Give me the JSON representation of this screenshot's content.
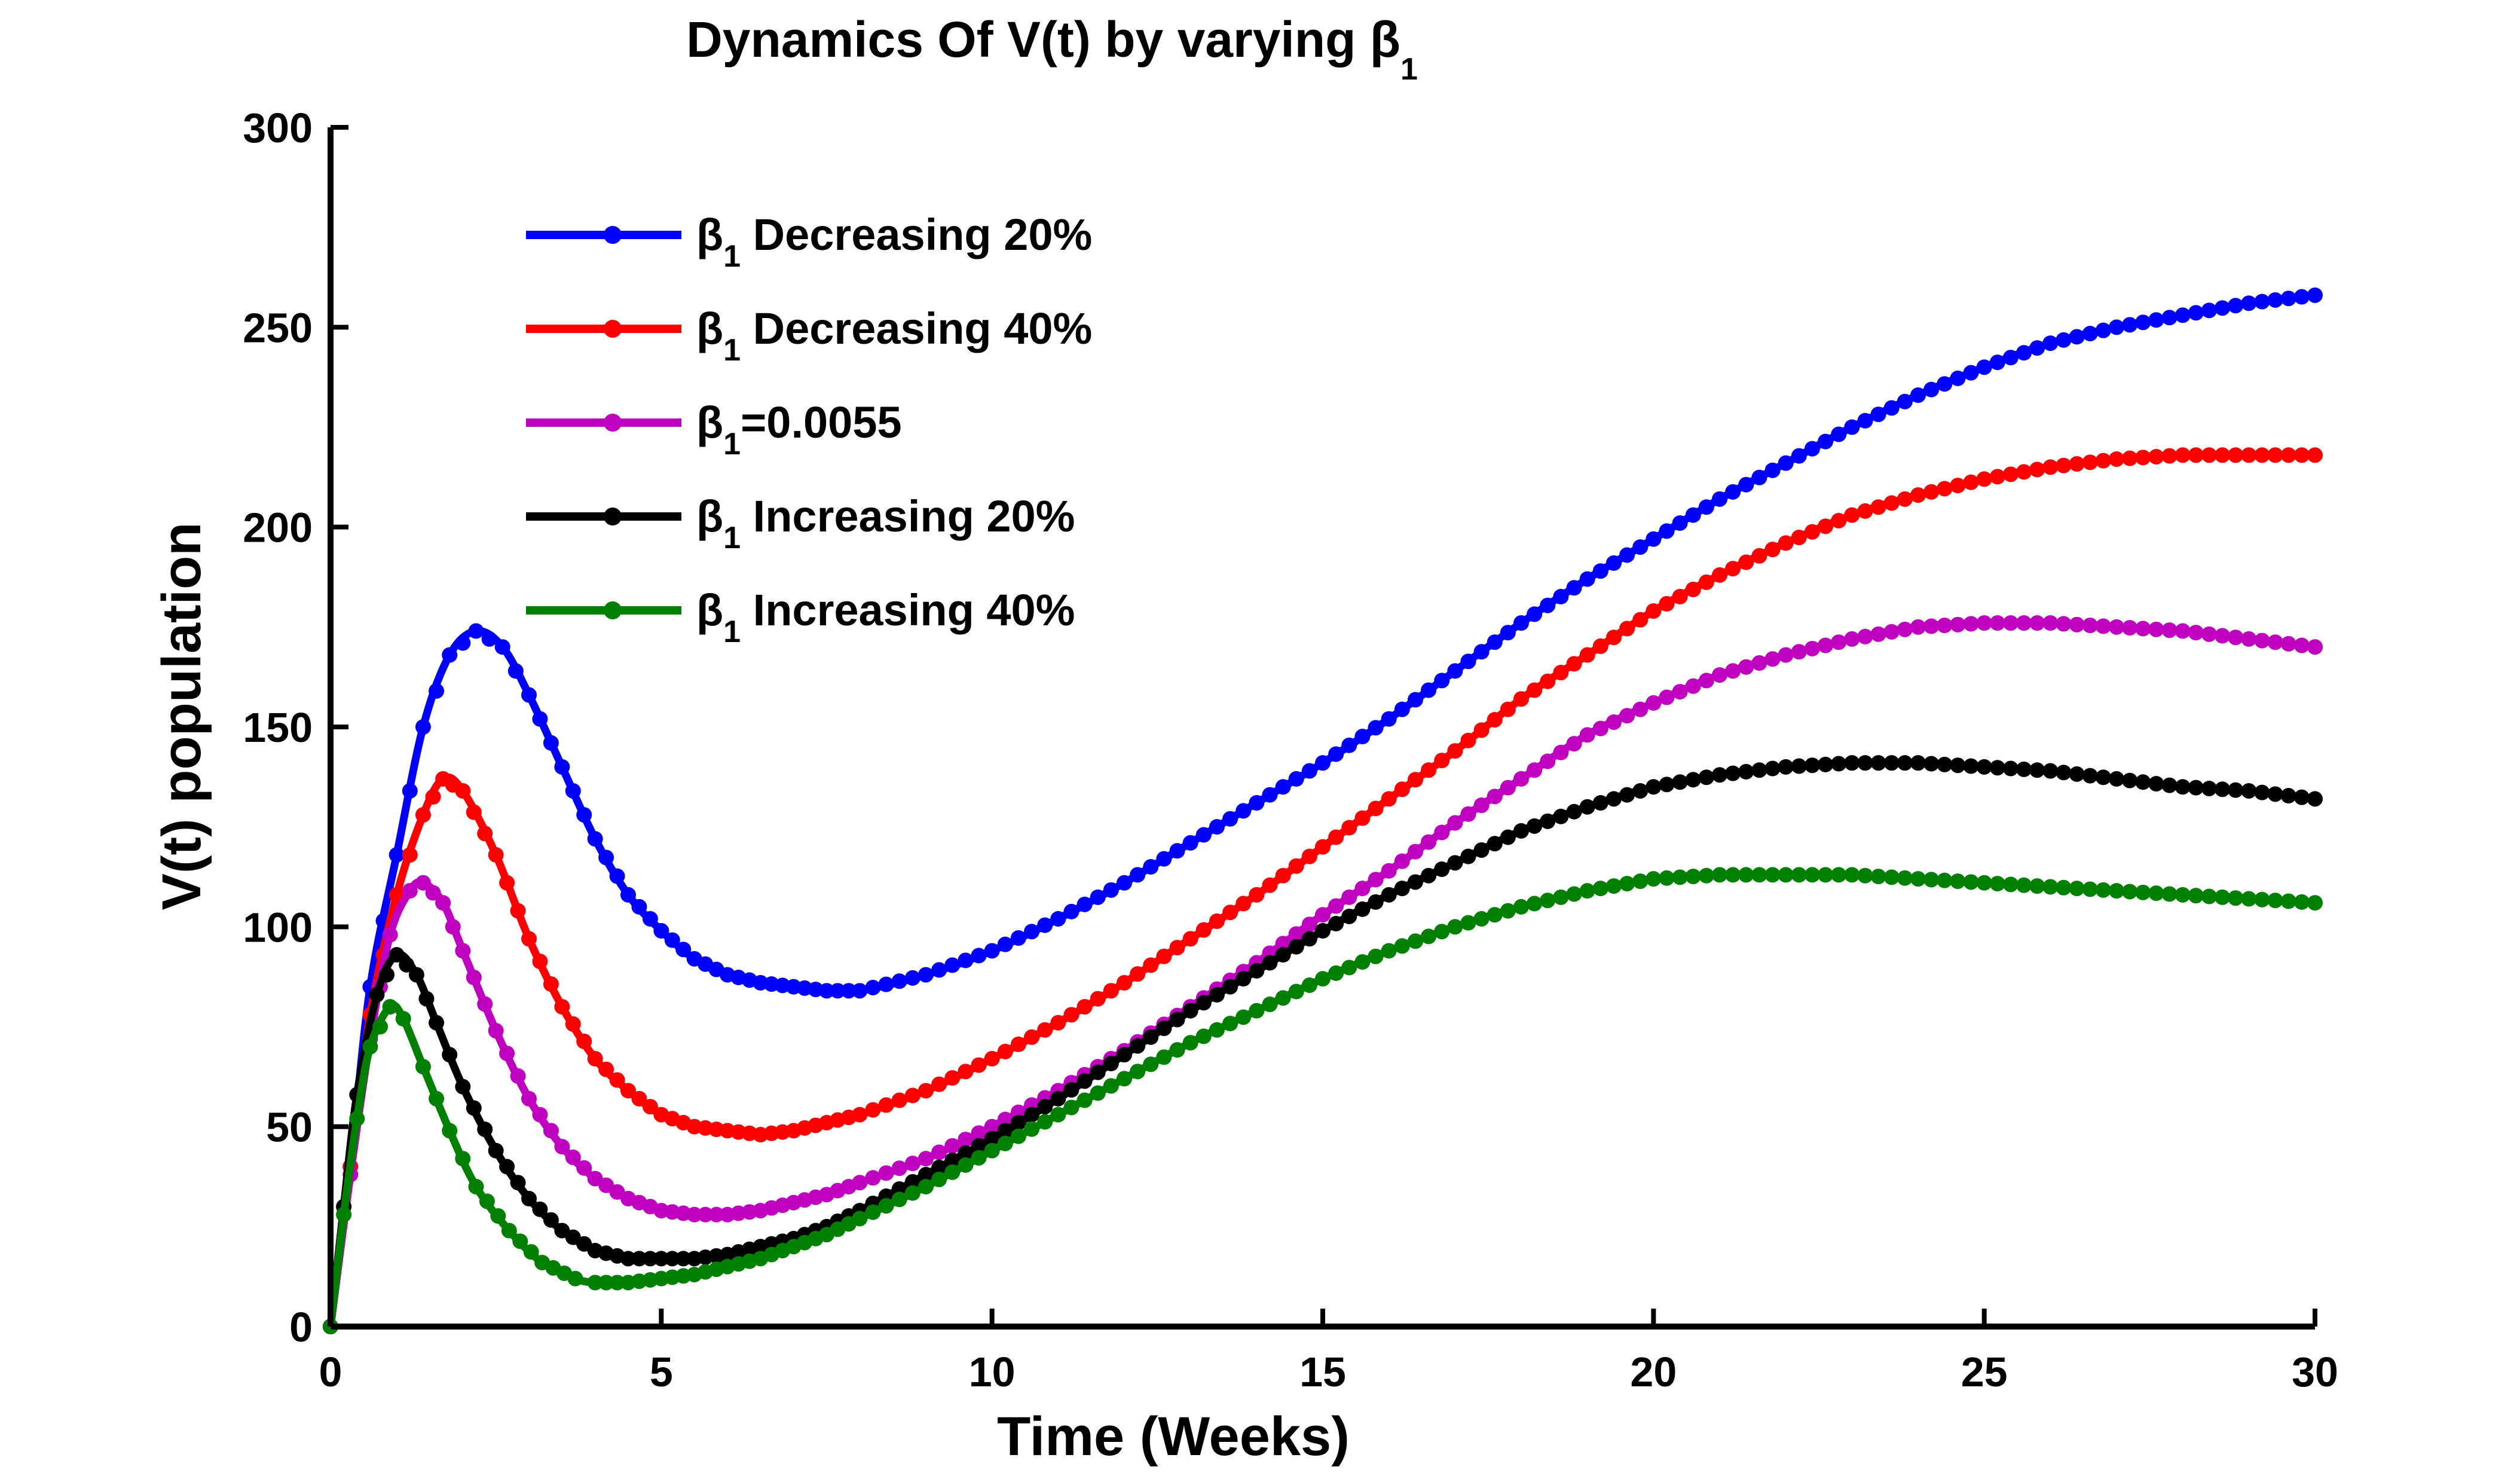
{
  "chart_data": {
    "type": "line",
    "title": "Dynamics Of V(t) by varying β",
    "title_subscript": "1",
    "xlabel": "Time (Weeks)",
    "ylabel": "V(t) population",
    "xlim": [
      0,
      30
    ],
    "ylim": [
      0,
      300
    ],
    "xticks": [
      0,
      5,
      10,
      15,
      20,
      25,
      30
    ],
    "yticks": [
      0,
      50,
      100,
      150,
      200,
      250,
      300
    ],
    "xtick_labels": [
      "0",
      "5",
      "10",
      "15",
      "20",
      "25",
      "30"
    ],
    "ytick_labels": [
      "0",
      "50",
      "100",
      "150",
      "200",
      "250",
      "300"
    ],
    "grid": false,
    "legend_position": "top-left",
    "marker": "circle",
    "series": [
      {
        "name_symbol": "β",
        "name_sub": "1",
        "name_rest": " Decreasing 20%",
        "color": "#0000ff",
        "points": [
          [
            0,
            0
          ],
          [
            0.3,
            40
          ],
          [
            0.6,
            85
          ],
          [
            1.0,
            118
          ],
          [
            1.4,
            150
          ],
          [
            1.8,
            168
          ],
          [
            2.2,
            174
          ],
          [
            2.6,
            170
          ],
          [
            3.0,
            158
          ],
          [
            3.5,
            140
          ],
          [
            4.0,
            122
          ],
          [
            4.5,
            108
          ],
          [
            5.0,
            99
          ],
          [
            5.5,
            92
          ],
          [
            6.0,
            88
          ],
          [
            6.5,
            86
          ],
          [
            7.0,
            85
          ],
          [
            7.5,
            84
          ],
          [
            8.0,
            84
          ],
          [
            9.0,
            88
          ],
          [
            10.0,
            94
          ],
          [
            11.0,
            102
          ],
          [
            12.0,
            111
          ],
          [
            13.0,
            121
          ],
          [
            14.0,
            131
          ],
          [
            15.0,
            141
          ],
          [
            16.0,
            152
          ],
          [
            17.0,
            164
          ],
          [
            18.0,
            176
          ],
          [
            19.0,
            187
          ],
          [
            20.0,
            197
          ],
          [
            21.0,
            207
          ],
          [
            22.0,
            216
          ],
          [
            23.0,
            225
          ],
          [
            24.0,
            233
          ],
          [
            25.0,
            240
          ],
          [
            26.0,
            246
          ],
          [
            27.0,
            250
          ],
          [
            28.0,
            253
          ],
          [
            29.0,
            256
          ],
          [
            30.0,
            258
          ]
        ]
      },
      {
        "name_symbol": "β",
        "name_sub": "1",
        "name_rest": " Decreasing 40%",
        "color": "#ff0000",
        "points": [
          [
            0,
            0
          ],
          [
            0.3,
            40
          ],
          [
            0.6,
            78
          ],
          [
            1.0,
            108
          ],
          [
            1.4,
            128
          ],
          [
            1.7,
            137
          ],
          [
            2.0,
            134
          ],
          [
            2.5,
            118
          ],
          [
            3.0,
            97
          ],
          [
            3.5,
            80
          ],
          [
            4.0,
            67
          ],
          [
            4.5,
            59
          ],
          [
            5.0,
            53
          ],
          [
            5.5,
            50
          ],
          [
            6.0,
            49
          ],
          [
            6.5,
            48
          ],
          [
            7.0,
            49
          ],
          [
            7.5,
            51
          ],
          [
            8.0,
            53
          ],
          [
            9.0,
            59
          ],
          [
            10.0,
            67
          ],
          [
            11.0,
            76
          ],
          [
            12.0,
            86
          ],
          [
            13.0,
            97
          ],
          [
            14.0,
            108
          ],
          [
            15.0,
            120
          ],
          [
            16.0,
            132
          ],
          [
            17.0,
            144
          ],
          [
            18.0,
            157
          ],
          [
            19.0,
            168
          ],
          [
            20.0,
            179
          ],
          [
            21.0,
            188
          ],
          [
            22.0,
            196
          ],
          [
            23.0,
            203
          ],
          [
            24.0,
            208
          ],
          [
            25.0,
            212
          ],
          [
            26.0,
            215
          ],
          [
            27.0,
            217
          ],
          [
            28.0,
            218
          ],
          [
            29.0,
            218
          ],
          [
            30.0,
            218
          ]
        ]
      },
      {
        "name_symbol": "β",
        "name_sub": "1",
        "name_rest": "=0.0055",
        "color": "#c000c0",
        "points": [
          [
            0,
            0
          ],
          [
            0.3,
            38
          ],
          [
            0.6,
            72
          ],
          [
            0.9,
            98
          ],
          [
            1.2,
            109
          ],
          [
            1.4,
            111
          ],
          [
            1.7,
            106
          ],
          [
            2.0,
            94
          ],
          [
            2.5,
            74
          ],
          [
            3.0,
            57
          ],
          [
            3.5,
            45
          ],
          [
            4.0,
            37
          ],
          [
            4.5,
            32
          ],
          [
            5.0,
            29
          ],
          [
            5.5,
            28
          ],
          [
            6.0,
            28
          ],
          [
            6.5,
            29
          ],
          [
            7.0,
            31
          ],
          [
            7.5,
            33
          ],
          [
            8.0,
            36
          ],
          [
            9.0,
            42
          ],
          [
            10.0,
            50
          ],
          [
            11.0,
            59
          ],
          [
            12.0,
            69
          ],
          [
            13.0,
            80
          ],
          [
            14.0,
            91
          ],
          [
            15.0,
            103
          ],
          [
            16.0,
            114
          ],
          [
            17.0,
            126
          ],
          [
            18.0,
            137
          ],
          [
            19.0,
            148
          ],
          [
            20.0,
            156
          ],
          [
            21.0,
            163
          ],
          [
            22.0,
            168
          ],
          [
            23.0,
            172
          ],
          [
            24.0,
            175
          ],
          [
            25.0,
            176
          ],
          [
            26.0,
            176
          ],
          [
            27.0,
            175
          ],
          [
            28.0,
            174
          ],
          [
            29.0,
            172
          ],
          [
            30.0,
            170
          ]
        ]
      },
      {
        "name_symbol": "β",
        "name_sub": "1",
        "name_rest": " Increasing 20%",
        "color": "#000000",
        "points": [
          [
            0,
            0
          ],
          [
            0.2,
            30
          ],
          [
            0.4,
            58
          ],
          [
            0.7,
            83
          ],
          [
            1.0,
            93
          ],
          [
            1.3,
            88
          ],
          [
            1.6,
            76
          ],
          [
            2.0,
            60
          ],
          [
            2.5,
            44
          ],
          [
            3.0,
            32
          ],
          [
            3.5,
            24
          ],
          [
            4.0,
            19
          ],
          [
            4.5,
            17
          ],
          [
            5.0,
            17
          ],
          [
            5.5,
            17
          ],
          [
            6.0,
            18
          ],
          [
            6.5,
            20
          ],
          [
            7.0,
            22
          ],
          [
            7.5,
            25
          ],
          [
            8.0,
            29
          ],
          [
            9.0,
            38
          ],
          [
            10.0,
            47
          ],
          [
            11.0,
            57
          ],
          [
            12.0,
            68
          ],
          [
            13.0,
            79
          ],
          [
            14.0,
            89
          ],
          [
            15.0,
            99
          ],
          [
            16.0,
            108
          ],
          [
            17.0,
            116
          ],
          [
            18.0,
            124
          ],
          [
            19.0,
            130
          ],
          [
            20.0,
            135
          ],
          [
            21.0,
            138
          ],
          [
            22.0,
            140
          ],
          [
            23.0,
            141
          ],
          [
            24.0,
            141
          ],
          [
            25.0,
            140
          ],
          [
            26.0,
            139
          ],
          [
            27.0,
            137
          ],
          [
            28.0,
            135
          ],
          [
            29.0,
            134
          ],
          [
            30.0,
            132
          ]
        ]
      },
      {
        "name_symbol": "β",
        "name_sub": "1",
        "name_rest": " Increasing 40%",
        "color": "#008000",
        "points": [
          [
            0,
            0
          ],
          [
            0.2,
            28
          ],
          [
            0.4,
            52
          ],
          [
            0.6,
            70
          ],
          [
            0.9,
            80
          ],
          [
            1.1,
            77
          ],
          [
            1.4,
            65
          ],
          [
            1.8,
            49
          ],
          [
            2.2,
            35
          ],
          [
            2.7,
            24
          ],
          [
            3.2,
            16
          ],
          [
            3.7,
            12
          ],
          [
            4.0,
            11
          ],
          [
            4.5,
            11
          ],
          [
            5.0,
            12
          ],
          [
            5.5,
            13
          ],
          [
            6.0,
            15
          ],
          [
            6.5,
            17
          ],
          [
            7.0,
            20
          ],
          [
            7.5,
            23
          ],
          [
            8.0,
            27
          ],
          [
            9.0,
            35
          ],
          [
            10.0,
            44
          ],
          [
            11.0,
            53
          ],
          [
            12.0,
            62
          ],
          [
            13.0,
            71
          ],
          [
            14.0,
            79
          ],
          [
            15.0,
            87
          ],
          [
            16.0,
            94
          ],
          [
            17.0,
            100
          ],
          [
            18.0,
            105
          ],
          [
            19.0,
            109
          ],
          [
            20.0,
            112
          ],
          [
            21.0,
            113
          ],
          [
            22.0,
            113
          ],
          [
            23.0,
            113
          ],
          [
            24.0,
            112
          ],
          [
            25.0,
            111
          ],
          [
            26.0,
            110
          ],
          [
            27.0,
            109
          ],
          [
            28.0,
            108
          ],
          [
            29.0,
            107
          ],
          [
            30.0,
            106
          ]
        ]
      }
    ]
  }
}
